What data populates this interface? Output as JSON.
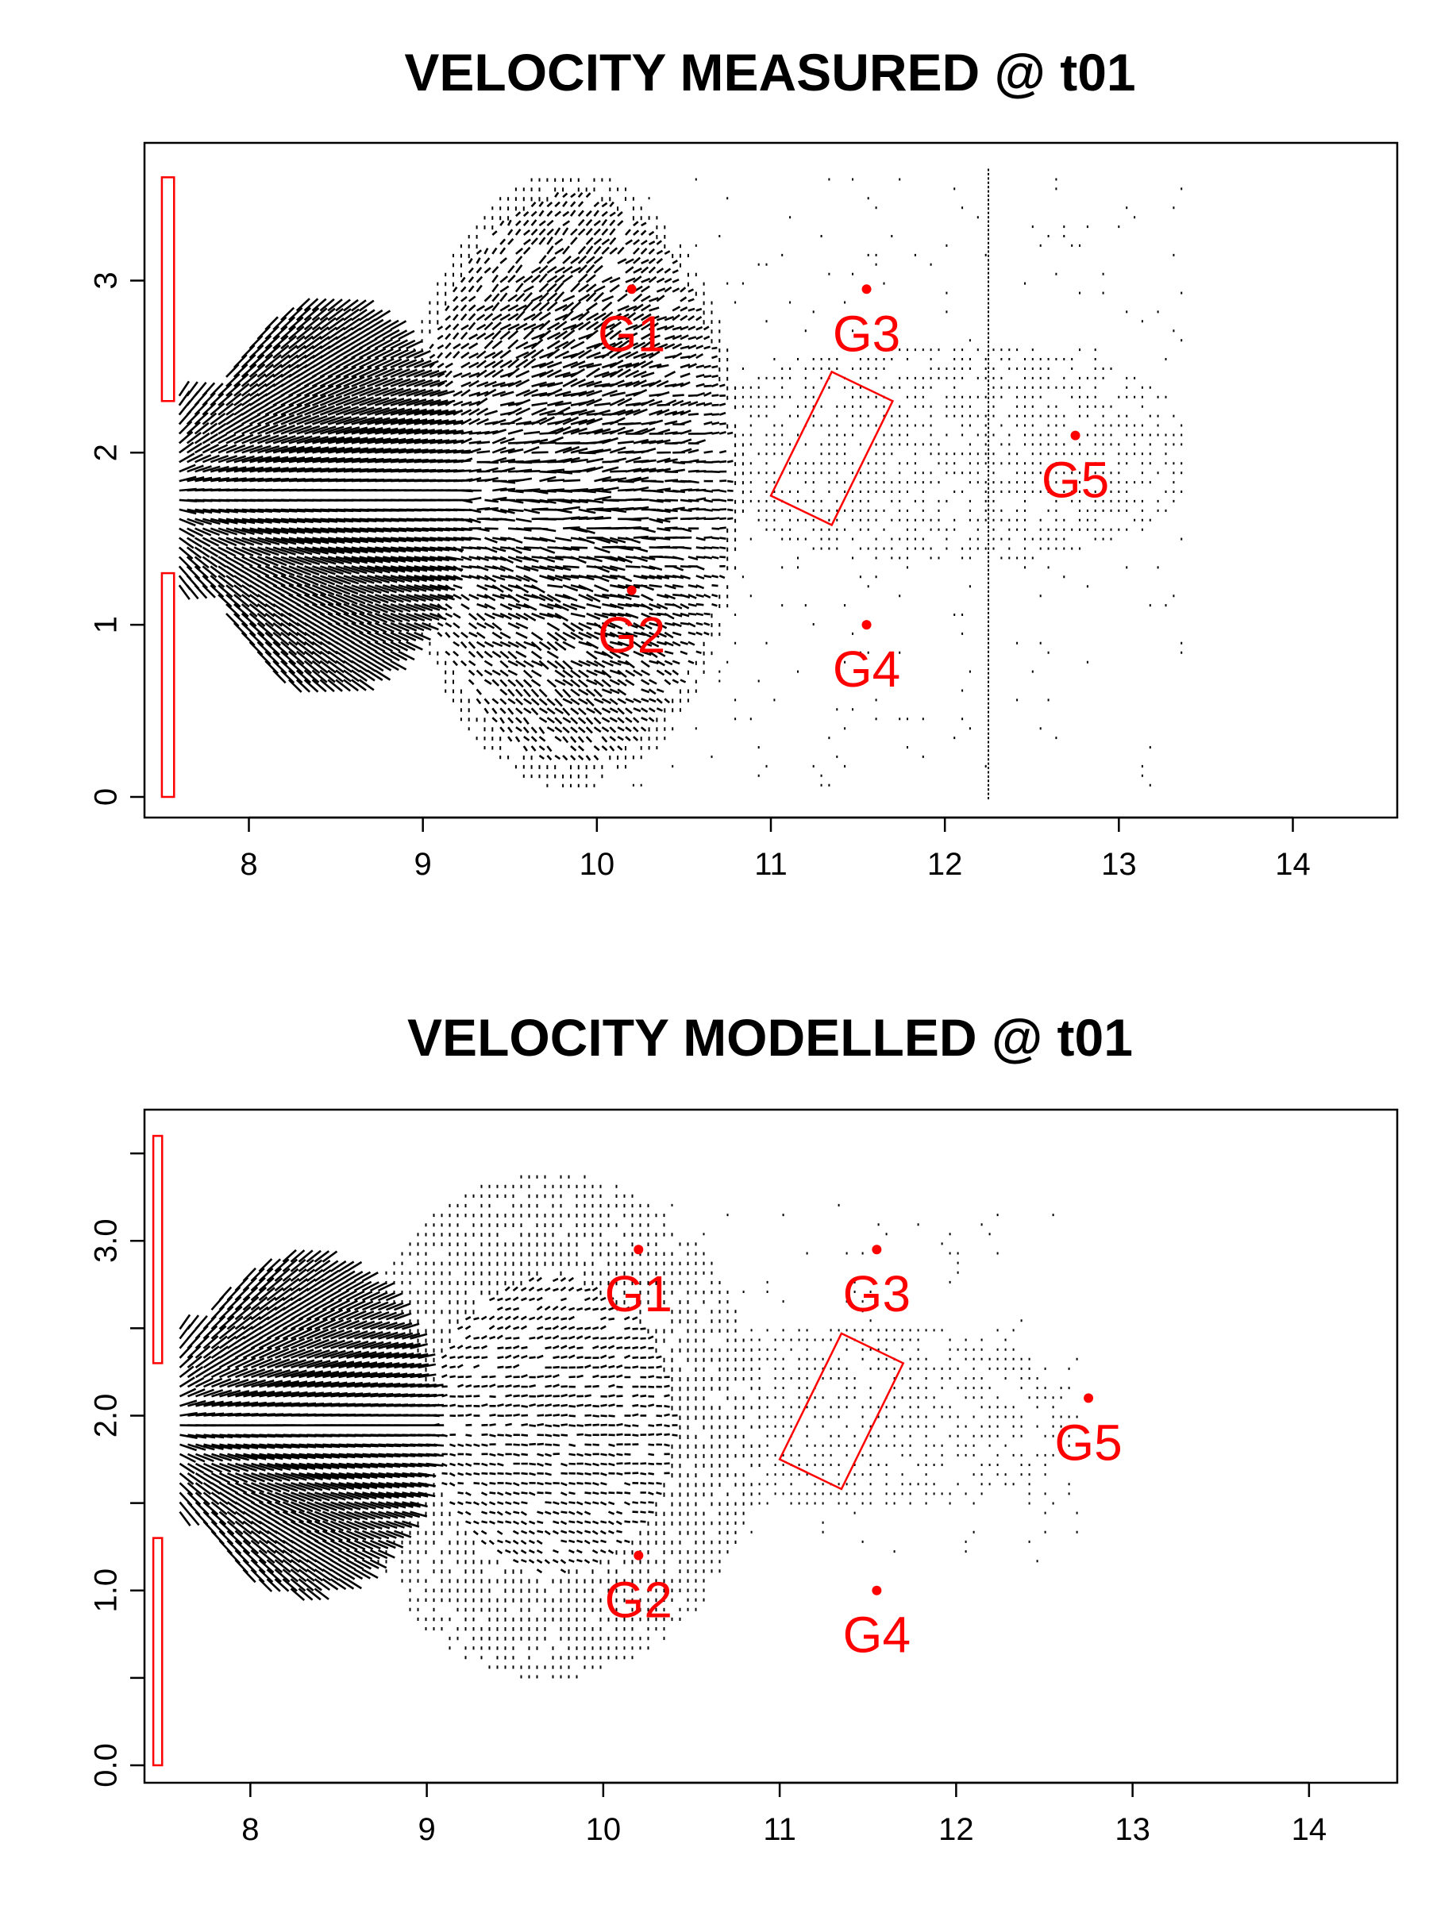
{
  "chart_data": [
    {
      "type": "vector-field",
      "title": "VELOCITY MEASURED @ t01",
      "xlabel": "",
      "ylabel": "",
      "xlim": [
        7.4,
        14.6
      ],
      "ylim": [
        -0.12,
        3.8
      ],
      "x_ticks": [
        {
          "value": 8,
          "label": "8"
        },
        {
          "value": 9,
          "label": "9"
        },
        {
          "value": 10,
          "label": "10"
        },
        {
          "value": 11,
          "label": "11"
        },
        {
          "value": 12,
          "label": "12"
        },
        {
          "value": 13,
          "label": "13"
        },
        {
          "value": 14,
          "label": "14"
        }
      ],
      "y_ticks": [
        {
          "value": 0,
          "label": "0"
        },
        {
          "value": 1,
          "label": "1"
        },
        {
          "value": 2,
          "label": "2"
        },
        {
          "value": 3,
          "label": "3"
        }
      ],
      "gauges": [
        {
          "name": "G1",
          "x": 10.2,
          "y": 2.95
        },
        {
          "name": "G2",
          "x": 10.2,
          "y": 1.2
        },
        {
          "name": "G3",
          "x": 11.55,
          "y": 2.95
        },
        {
          "name": "G4",
          "x": 11.55,
          "y": 1.0
        },
        {
          "name": "G5",
          "x": 12.75,
          "y": 2.1
        }
      ],
      "inlet_brackets": [
        {
          "x0": 7.5,
          "x1": 7.57,
          "y0": 2.3,
          "y1": 3.6
        },
        {
          "x0": 7.5,
          "x1": 7.57,
          "y0": 0.0,
          "y1": 1.3
        }
      ],
      "obstacle": [
        [
          11.0,
          1.75
        ],
        [
          11.35,
          1.58
        ],
        [
          11.7,
          2.3
        ],
        [
          11.35,
          2.47
        ]
      ],
      "field": {
        "core_center": [
          8.45,
          1.75
        ],
        "core_rx": 0.75,
        "core_ry": 1.12,
        "mid_center": [
          9.85,
          1.85
        ],
        "mid_rx": 1.0,
        "mid_ry": 1.8,
        "sparse_extent": [
          9.9,
          13.4,
          0.05,
          3.65
        ],
        "rail_x": 12.25
      },
      "colors": {
        "gauge": "#ff0000",
        "vectors": "#000000"
      }
    },
    {
      "type": "vector-field",
      "title": "VELOCITY MODELLED @ t01",
      "xlabel": "",
      "ylabel": "",
      "xlim": [
        7.4,
        14.5
      ],
      "ylim": [
        -0.1,
        3.75
      ],
      "x_ticks": [
        {
          "value": 8,
          "label": "8"
        },
        {
          "value": 9,
          "label": "9"
        },
        {
          "value": 10,
          "label": "10"
        },
        {
          "value": 11,
          "label": "11"
        },
        {
          "value": 12,
          "label": "12"
        },
        {
          "value": 13,
          "label": "13"
        },
        {
          "value": 14,
          "label": "14"
        }
      ],
      "y_ticks": [
        {
          "value": 0.0,
          "label": "0.0"
        },
        {
          "value": 0.5,
          "label": ""
        },
        {
          "value": 1.0,
          "label": "1.0"
        },
        {
          "value": 1.5,
          "label": ""
        },
        {
          "value": 2.0,
          "label": "2.0"
        },
        {
          "value": 2.5,
          "label": ""
        },
        {
          "value": 3.0,
          "label": "3.0"
        },
        {
          "value": 3.5,
          "label": ""
        }
      ],
      "gauges": [
        {
          "name": "G1",
          "x": 10.2,
          "y": 2.95
        },
        {
          "name": "G2",
          "x": 10.2,
          "y": 1.2
        },
        {
          "name": "G3",
          "x": 11.55,
          "y": 2.95
        },
        {
          "name": "G4",
          "x": 11.55,
          "y": 1.0
        },
        {
          "name": "G5",
          "x": 12.75,
          "y": 2.1
        }
      ],
      "inlet_brackets": [
        {
          "x0": 7.45,
          "x1": 7.5,
          "y0": 2.3,
          "y1": 3.6
        },
        {
          "x0": 7.45,
          "x1": 7.5,
          "y0": 0.0,
          "y1": 1.3
        }
      ],
      "obstacle": [
        [
          11.0,
          1.75
        ],
        [
          11.35,
          1.58
        ],
        [
          11.7,
          2.3
        ],
        [
          11.35,
          2.47
        ]
      ],
      "field": {
        "core_center": [
          8.3,
          1.95
        ],
        "core_rx": 0.72,
        "core_ry": 0.95,
        "mid_center": [
          9.7,
          1.95
        ],
        "mid_rx": 1.2,
        "mid_ry": 1.45,
        "sparse_extent": [
          10.0,
          12.7,
          1.1,
          3.25
        ],
        "rail_x": null
      },
      "colors": {
        "gauge": "#ff0000",
        "vectors": "#000000"
      }
    }
  ]
}
